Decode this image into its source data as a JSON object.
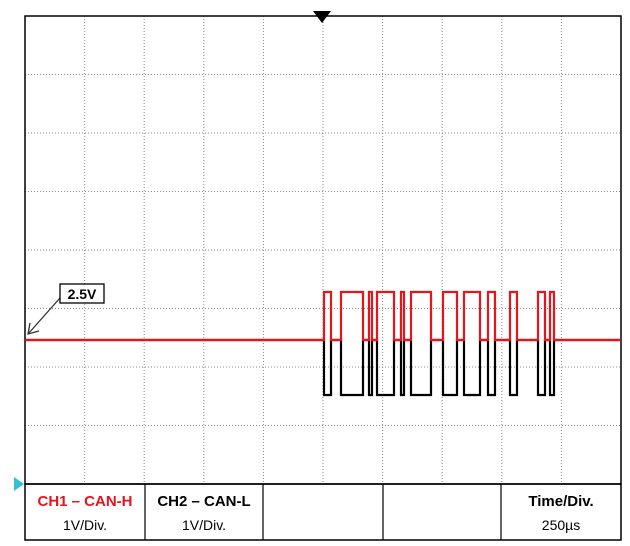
{
  "volt_marker": {
    "label": "2.5V"
  },
  "channels": [
    {
      "name": "CH1 – CAN-H",
      "scale": "1V/Div.",
      "color": "#e8141b"
    },
    {
      "name": "CH2 – CAN-L",
      "scale": "1V/Div.",
      "color": "#000000"
    }
  ],
  "timebase": {
    "label": "Time/Div.",
    "value": "250µs"
  },
  "colors": {
    "grid": "#888888",
    "frame": "#000000",
    "ch1": "#e8141b",
    "ch2": "#000000",
    "ground_marker": "#2ec4d6"
  },
  "icons": {
    "trigger": "trigger-marker-icon",
    "ground": "ground-marker-icon",
    "level_arrow": "arrow-icon"
  }
}
